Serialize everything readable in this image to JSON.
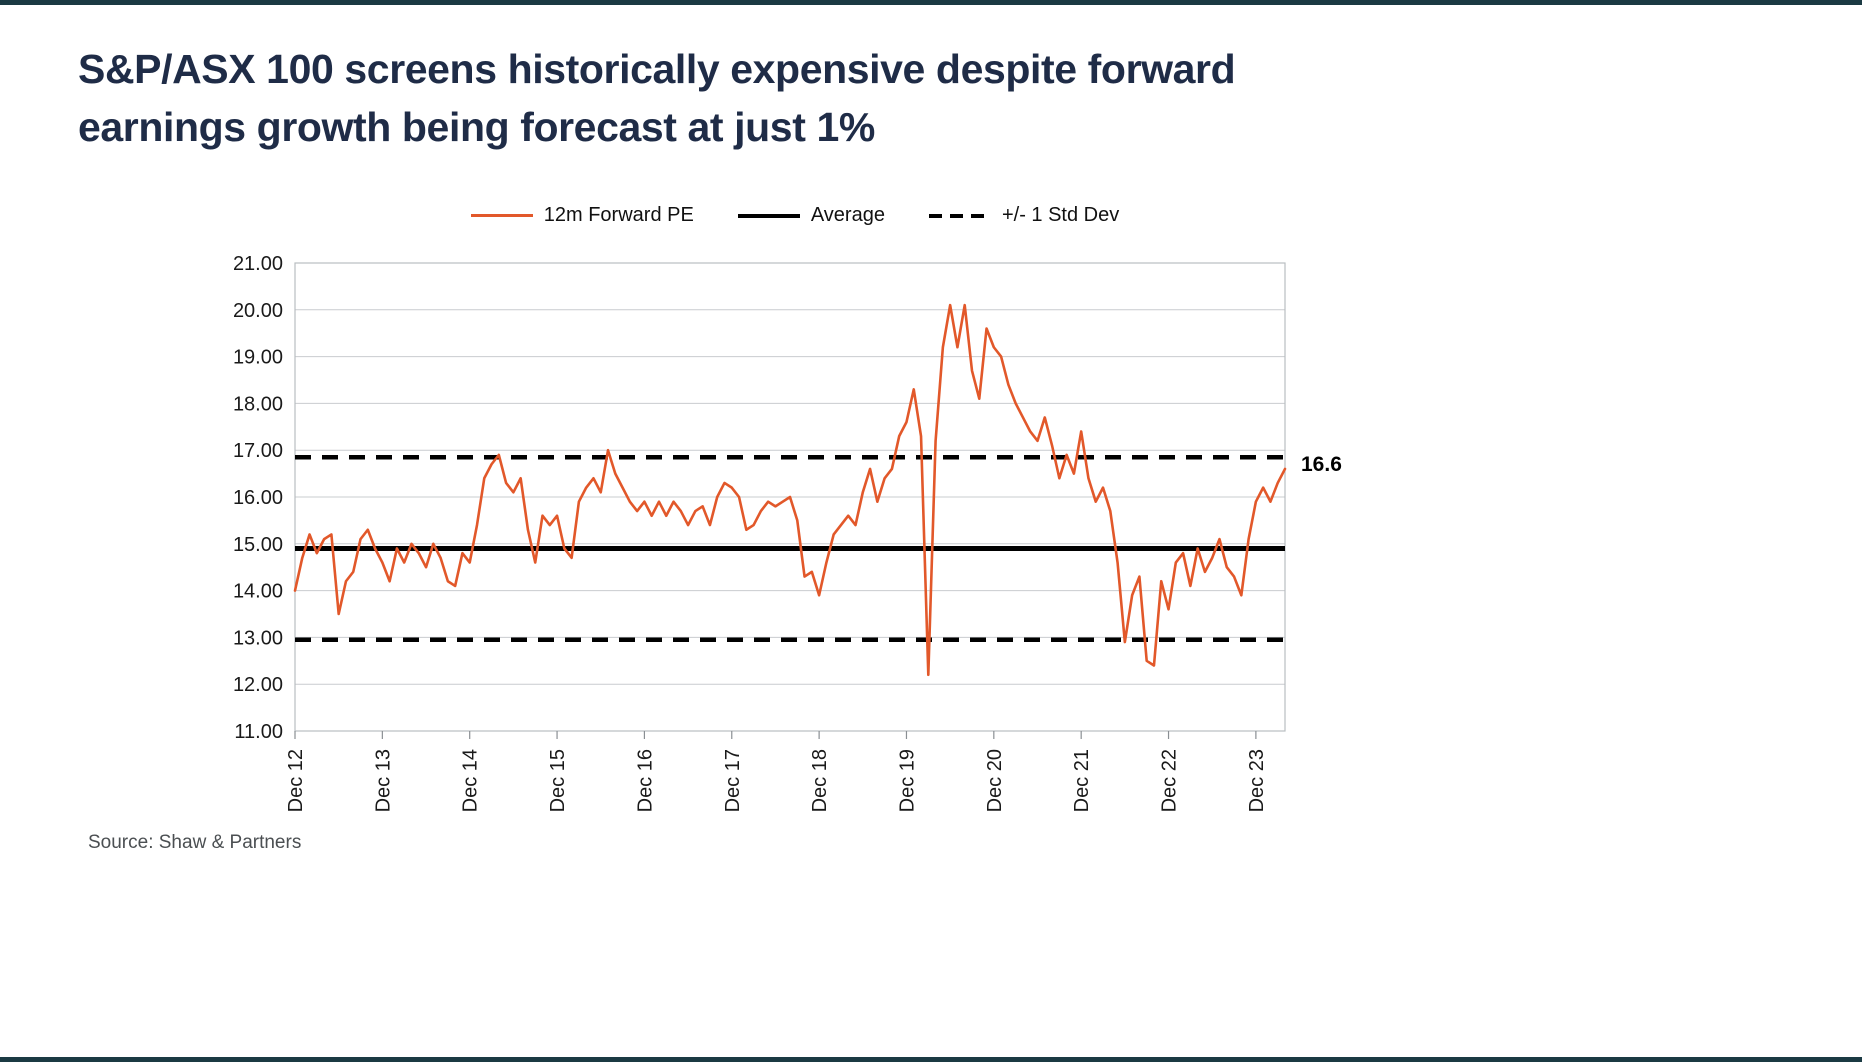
{
  "page": {
    "title_line1": "S&P/ASX 100 screens historically expensive despite forward",
    "title_line2": "earnings growth being forecast at just 1%",
    "source": "Source: Shaw & Partners"
  },
  "legend": {
    "items": [
      {
        "label": "12m Forward PE",
        "style": "orange-solid"
      },
      {
        "label": "Average",
        "style": "black-solid"
      },
      {
        "label": "+/- 1 Std Dev",
        "style": "black-dashed"
      }
    ]
  },
  "colors": {
    "series": "#E2582A",
    "average": "#000000",
    "std_dev": "#000000",
    "grid": "#c9cccf",
    "plot_border": "#b9bdc1",
    "tick": "#8a8f93",
    "title": "#1f2c47",
    "accent_bar": "#1b3a43"
  },
  "chart_data": {
    "type": "line",
    "title": "S&P/ASX 100 12m forward PE vs average and +/- 1 standard deviation",
    "xlabel": "",
    "ylabel": "",
    "y_min": 11,
    "y_max": 21,
    "y_step": 1,
    "y_tick_format_decimals": 2,
    "grid": true,
    "legend_position": "top-center",
    "x_labels": [
      "Dec 12",
      "Dec 13",
      "Dec 14",
      "Dec 15",
      "Dec 16",
      "Dec 17",
      "Dec 18",
      "Dec 19",
      "Dec 20",
      "Dec 21",
      "Dec 22",
      "Dec 23"
    ],
    "x_label_step": 12,
    "average": 14.9,
    "std_dev_upper": 16.85,
    "std_dev_lower": 12.95,
    "annotation": {
      "text": "16.6",
      "value": 16.6
    },
    "series": [
      {
        "name": "12m Forward PE",
        "values": [
          14.0,
          14.7,
          15.2,
          14.8,
          15.1,
          15.2,
          13.5,
          14.2,
          14.4,
          15.1,
          15.3,
          14.9,
          14.6,
          14.2,
          14.9,
          14.6,
          15.0,
          14.8,
          14.5,
          15.0,
          14.7,
          14.2,
          14.1,
          14.8,
          14.6,
          15.4,
          16.4,
          16.7,
          16.9,
          16.3,
          16.1,
          16.4,
          15.3,
          14.6,
          15.6,
          15.4,
          15.6,
          14.9,
          14.7,
          15.9,
          16.2,
          16.4,
          16.1,
          17.0,
          16.5,
          16.2,
          15.9,
          15.7,
          15.9,
          15.6,
          15.9,
          15.6,
          15.9,
          15.7,
          15.4,
          15.7,
          15.8,
          15.4,
          16.0,
          16.3,
          16.2,
          16.0,
          15.3,
          15.4,
          15.7,
          15.9,
          15.8,
          15.9,
          16.0,
          15.5,
          14.3,
          14.4,
          13.9,
          14.6,
          15.2,
          15.4,
          15.6,
          15.4,
          16.1,
          16.6,
          15.9,
          16.4,
          16.6,
          17.3,
          17.6,
          18.3,
          17.3,
          12.2,
          17.2,
          19.2,
          20.1,
          19.2,
          20.1,
          18.7,
          18.1,
          19.6,
          19.2,
          19.0,
          18.4,
          18.0,
          17.7,
          17.4,
          17.2,
          17.7,
          17.1,
          16.4,
          16.9,
          16.5,
          17.4,
          16.4,
          15.9,
          16.2,
          15.7,
          14.6,
          12.9,
          13.9,
          14.3,
          12.5,
          12.4,
          14.2,
          13.6,
          14.6,
          14.8,
          14.1,
          14.9,
          14.4,
          14.7,
          15.1,
          14.5,
          14.3,
          13.9,
          15.1,
          15.9,
          16.2,
          15.9,
          16.3,
          16.6
        ]
      }
    ]
  }
}
